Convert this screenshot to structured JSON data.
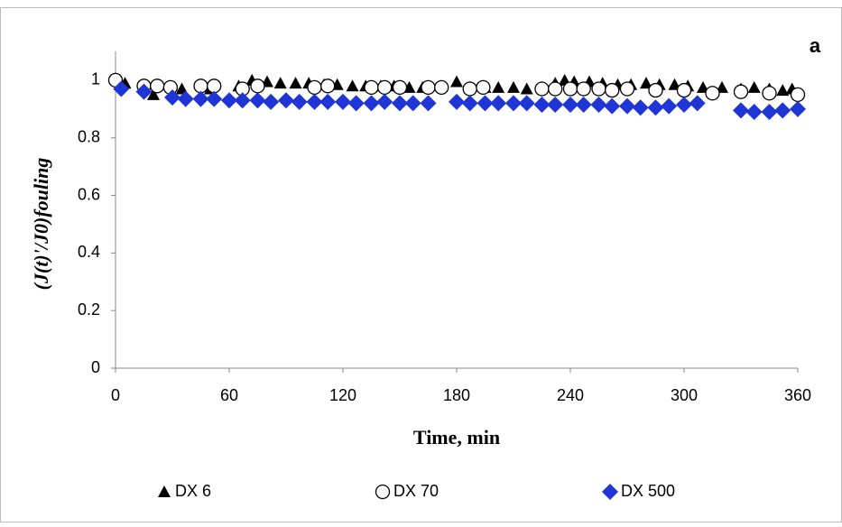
{
  "chart_data": {
    "type": "scatter",
    "annotation": "a",
    "x_label": "Time, min",
    "y_label": "(J(t)'/J0)fouling",
    "xlim": [
      0,
      360
    ],
    "xticks": [
      0,
      60,
      120,
      180,
      240,
      300,
      360
    ],
    "ylim": [
      0,
      1.1
    ],
    "yticks": [
      0,
      0.2,
      0.4,
      0.6,
      0.8,
      1
    ],
    "grid": false,
    "legend": "bottom",
    "series": [
      {
        "name": "DX 6",
        "marker": "triangle",
        "color": "#000000",
        "x": [
          5,
          20,
          35,
          50,
          65,
          72,
          80,
          87,
          95,
          102,
          110,
          117,
          125,
          132,
          140,
          147,
          155,
          162,
          180,
          187,
          195,
          202,
          210,
          217,
          225,
          232,
          237,
          242,
          250,
          257,
          265,
          272,
          280,
          287,
          295,
          302,
          310,
          320,
          330,
          337,
          345,
          352,
          357
        ],
        "values": [
          0.99,
          0.95,
          0.97,
          0.97,
          0.98,
          1.0,
          0.995,
          0.99,
          0.99,
          0.99,
          0.985,
          0.985,
          0.98,
          0.98,
          0.98,
          0.98,
          0.975,
          0.975,
          0.995,
          0.975,
          0.975,
          0.975,
          0.975,
          0.97,
          0.975,
          0.99,
          1.0,
          0.995,
          0.995,
          0.99,
          0.985,
          0.985,
          0.99,
          0.985,
          0.985,
          0.98,
          0.975,
          0.975,
          0.97,
          0.975,
          0.97,
          0.965,
          0.97
        ]
      },
      {
        "name": "DX 70",
        "marker": "circle",
        "color": "#000000",
        "x": [
          0,
          15,
          22,
          29,
          45,
          52,
          67,
          75,
          105,
          112,
          135,
          142,
          150,
          165,
          172,
          187,
          194,
          225,
          232,
          240,
          247,
          255,
          262,
          270,
          285,
          300,
          315,
          330,
          345,
          360
        ],
        "values": [
          1.0,
          0.98,
          0.98,
          0.975,
          0.98,
          0.98,
          0.97,
          0.98,
          0.975,
          0.98,
          0.975,
          0.975,
          0.975,
          0.975,
          0.975,
          0.97,
          0.975,
          0.97,
          0.97,
          0.97,
          0.97,
          0.97,
          0.965,
          0.97,
          0.965,
          0.965,
          0.955,
          0.96,
          0.955,
          0.95
        ]
      },
      {
        "name": "DX 500",
        "marker": "diamond",
        "color": "#1f35d6",
        "x": [
          3,
          15,
          30,
          37,
          45,
          52,
          60,
          67,
          75,
          82,
          90,
          97,
          105,
          112,
          120,
          127,
          135,
          142,
          150,
          157,
          165,
          180,
          187,
          195,
          202,
          210,
          217,
          225,
          232,
          240,
          247,
          255,
          262,
          270,
          277,
          285,
          292,
          300,
          307,
          330,
          337,
          345,
          352,
          360
        ],
        "values": [
          0.97,
          0.96,
          0.94,
          0.935,
          0.935,
          0.935,
          0.93,
          0.93,
          0.93,
          0.925,
          0.93,
          0.925,
          0.925,
          0.925,
          0.925,
          0.92,
          0.92,
          0.925,
          0.92,
          0.92,
          0.92,
          0.925,
          0.92,
          0.92,
          0.92,
          0.92,
          0.92,
          0.915,
          0.915,
          0.915,
          0.915,
          0.915,
          0.91,
          0.91,
          0.905,
          0.905,
          0.91,
          0.915,
          0.92,
          0.895,
          0.89,
          0.89,
          0.895,
          0.9
        ]
      }
    ]
  }
}
